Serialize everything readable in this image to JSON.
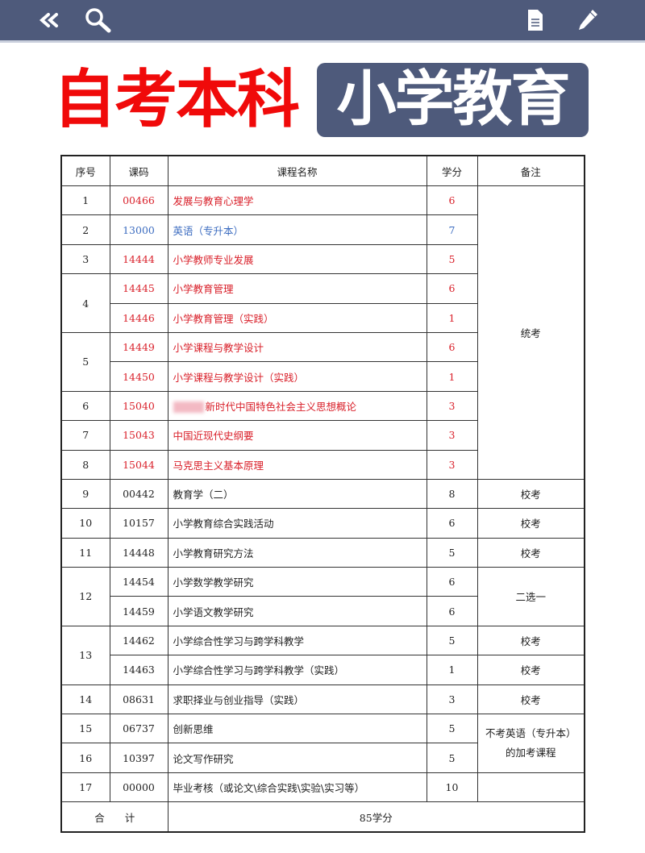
{
  "toolbar": {
    "icons": [
      "double-chevron-left-icon",
      "search-icon",
      "document-icon",
      "pencil-icon"
    ],
    "color": "#4e5a7b"
  },
  "title": {
    "red_part": "自考本科",
    "box_part": "小学教育",
    "red_color": "#f00a0a"
  },
  "table": {
    "headers": [
      "序号",
      "课码",
      "课程名称",
      "学分",
      "备注"
    ],
    "colors": {
      "red": "#d9202a",
      "blue": "#3c6cc0"
    },
    "groups": [
      {
        "no": "1",
        "courses": [
          {
            "code": "00466",
            "name": "发展与教育心理学",
            "credits": "6",
            "color": "red"
          }
        ]
      },
      {
        "no": "2",
        "courses": [
          {
            "code": "13000",
            "name": "英语（专升本）",
            "credits": "7",
            "color": "blue"
          }
        ]
      },
      {
        "no": "3",
        "courses": [
          {
            "code": "14444",
            "name": "小学教师专业发展",
            "credits": "5",
            "color": "red"
          }
        ]
      },
      {
        "no": "4",
        "courses": [
          {
            "code": "14445",
            "name": "小学教育管理",
            "credits": "6",
            "color": "red"
          },
          {
            "code": "14446",
            "name": "小学教育管理（实践）",
            "credits": "1",
            "color": "red"
          }
        ]
      },
      {
        "no": "5",
        "courses": [
          {
            "code": "14449",
            "name": "小学课程与教学设计",
            "credits": "6",
            "color": "red"
          },
          {
            "code": "14450",
            "name": "小学课程与教学设计（实践）",
            "credits": "1",
            "color": "red"
          }
        ]
      },
      {
        "no": "6",
        "courses": [
          {
            "code": "15040",
            "name": "新时代中国特色社会主义思想概论",
            "credits": "3",
            "color": "red",
            "blurred_prefix": true
          }
        ]
      },
      {
        "no": "7",
        "courses": [
          {
            "code": "15043",
            "name": "中国近现代史纲要",
            "credits": "3",
            "color": "red"
          }
        ]
      },
      {
        "no": "8",
        "courses": [
          {
            "code": "15044",
            "name": "马克思主义基本原理",
            "credits": "3",
            "color": "red"
          }
        ]
      },
      {
        "no": "9",
        "courses": [
          {
            "code": "00442",
            "name": "教育学（二）",
            "credits": "8",
            "color": "black"
          }
        ]
      },
      {
        "no": "10",
        "courses": [
          {
            "code": "10157",
            "name": "小学教育综合实践活动",
            "credits": "6",
            "color": "black"
          }
        ]
      },
      {
        "no": "11",
        "courses": [
          {
            "code": "14448",
            "name": "小学教育研究方法",
            "credits": "5",
            "color": "black"
          }
        ]
      },
      {
        "no": "12",
        "courses": [
          {
            "code": "14454",
            "name": "小学数学教学研究",
            "credits": "6",
            "color": "black"
          },
          {
            "code": "14459",
            "name": "小学语文教学研究",
            "credits": "6",
            "color": "black"
          }
        ]
      },
      {
        "no": "13",
        "courses": [
          {
            "code": "14462",
            "name": "小学综合性学习与跨学科教学",
            "credits": "5",
            "color": "black"
          },
          {
            "code": "14463",
            "name": "小学综合性学习与跨学科教学（实践）",
            "credits": "1",
            "color": "black"
          }
        ]
      },
      {
        "no": "14",
        "courses": [
          {
            "code": "08631",
            "name": "求职择业与创业指导（实践）",
            "credits": "3",
            "color": "black"
          }
        ]
      },
      {
        "no": "15",
        "courses": [
          {
            "code": "06737",
            "name": "创新思维",
            "credits": "5",
            "color": "black"
          }
        ]
      },
      {
        "no": "16",
        "courses": [
          {
            "code": "10397",
            "name": "论文写作研究",
            "credits": "5",
            "color": "black"
          }
        ]
      },
      {
        "no": "17",
        "courses": [
          {
            "code": "00000",
            "name": "毕业考核（或论文\\综合实践\\实验\\实习等）",
            "credits": "10",
            "color": "black"
          }
        ]
      }
    ],
    "remarks": [
      "统考",
      "校考",
      "校考",
      "校考",
      "二选一",
      "校考",
      "校考",
      "校考",
      "不考英语（专升本）的加考课程",
      ""
    ],
    "total_label": "合　　计",
    "total_value": "85学分"
  }
}
